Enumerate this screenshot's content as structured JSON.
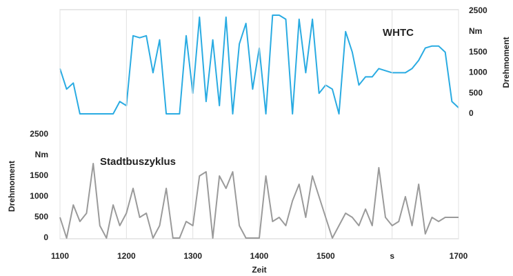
{
  "chart_data": [
    {
      "type": "line",
      "yaxis": "right",
      "ylabel": "Drehmoment",
      "xlim": [
        1100,
        1700
      ],
      "ylim": [
        0,
        2500
      ],
      "yticks": [
        0,
        500,
        1000,
        1500,
        {
          "value": 2000,
          "label": "Nm"
        },
        2500
      ],
      "x": [
        1100,
        1110,
        1120,
        1130,
        1140,
        1150,
        1160,
        1170,
        1180,
        1190,
        1200,
        1210,
        1220,
        1230,
        1240,
        1250,
        1260,
        1270,
        1280,
        1290,
        1300,
        1310,
        1320,
        1330,
        1340,
        1350,
        1360,
        1370,
        1380,
        1390,
        1400,
        1410,
        1420,
        1430,
        1440,
        1450,
        1460,
        1470,
        1480,
        1490,
        1500,
        1510,
        1520,
        1530,
        1540,
        1550,
        1560,
        1570,
        1580,
        1590,
        1600,
        1610,
        1620,
        1630,
        1640,
        1650,
        1660,
        1670,
        1680,
        1690,
        1700
      ],
      "series": [
        {
          "name": "WHTC",
          "color": "#29abe2",
          "values": [
            1100,
            600,
            750,
            0,
            0,
            0,
            0,
            0,
            0,
            300,
            200,
            1900,
            1850,
            1900,
            1000,
            1800,
            0,
            0,
            0,
            1900,
            500,
            2350,
            300,
            1800,
            200,
            2350,
            0,
            1700,
            2200,
            600,
            1600,
            0,
            2400,
            2400,
            2300,
            0,
            2300,
            1000,
            2300,
            500,
            700,
            600,
            0,
            2000,
            1500,
            700,
            900,
            900,
            1100,
            1050,
            1000,
            1000,
            1000,
            1100,
            1300,
            1600,
            1650,
            1650,
            1500,
            300,
            150
          ]
        }
      ]
    },
    {
      "type": "line",
      "yaxis": "left",
      "ylabel": "Drehmoment",
      "xlabel": "Zeit",
      "xgrid": true,
      "xlim": [
        1100,
        1700
      ],
      "ylim": [
        0,
        2500
      ],
      "xticks": [
        1100,
        1200,
        1300,
        1400,
        1500,
        {
          "value": 1600,
          "label": "s"
        },
        1700
      ],
      "yticks": [
        0,
        500,
        1000,
        1500,
        {
          "value": 2000,
          "label": "Nm"
        },
        2500
      ],
      "x": [
        1100,
        1110,
        1120,
        1130,
        1140,
        1150,
        1160,
        1170,
        1180,
        1190,
        1200,
        1210,
        1220,
        1230,
        1240,
        1250,
        1260,
        1270,
        1280,
        1290,
        1300,
        1310,
        1320,
        1330,
        1340,
        1350,
        1360,
        1370,
        1380,
        1390,
        1400,
        1410,
        1420,
        1430,
        1440,
        1450,
        1460,
        1470,
        1480,
        1490,
        1500,
        1510,
        1520,
        1530,
        1540,
        1550,
        1560,
        1570,
        1580,
        1590,
        1600,
        1610,
        1620,
        1630,
        1640,
        1650,
        1660,
        1670,
        1680,
        1690,
        1700
      ],
      "series": [
        {
          "name": "Stadtbuszyklus",
          "color": "#9a9a9a",
          "values": [
            500,
            0,
            800,
            400,
            600,
            1800,
            300,
            0,
            800,
            300,
            600,
            1200,
            500,
            600,
            0,
            300,
            1200,
            0,
            0,
            400,
            300,
            1500,
            1600,
            0,
            1500,
            1200,
            1600,
            300,
            0,
            0,
            0,
            1500,
            400,
            500,
            300,
            900,
            1300,
            500,
            1500,
            1000,
            500,
            0,
            300,
            600,
            500,
            300,
            700,
            300,
            1700,
            500,
            300,
            400,
            1000,
            300,
            1300,
            100,
            500,
            400,
            500,
            500,
            500
          ]
        }
      ]
    }
  ]
}
